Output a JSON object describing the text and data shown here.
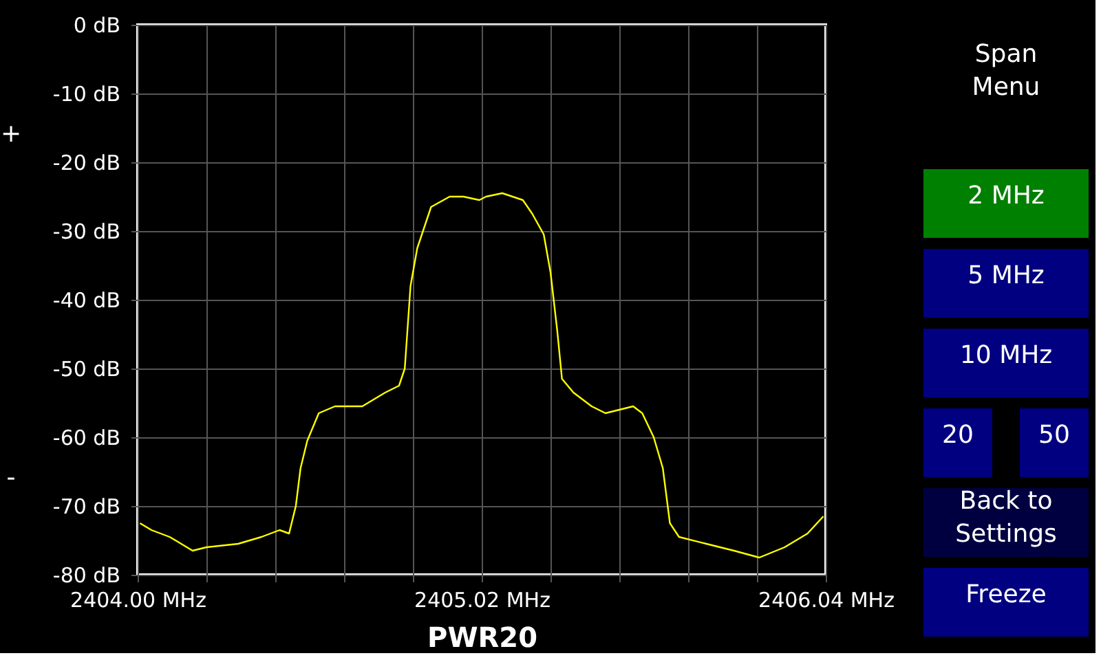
{
  "chart_data": {
    "type": "line",
    "xlabel": "PWR20",
    "x": [
      2404.007,
      2404.041,
      2404.095,
      2404.163,
      2404.204,
      2404.298,
      2404.367,
      2404.421,
      2404.449,
      2404.469,
      2404.483,
      2404.503,
      2404.537,
      2404.585,
      2404.666,
      2404.734,
      2404.775,
      2404.792,
      2404.809,
      2404.829,
      2404.87,
      2404.925,
      2404.966,
      2405.013,
      2405.033,
      2405.081,
      2405.142,
      2405.17,
      2405.204,
      2405.224,
      2405.244,
      2405.258,
      2405.292,
      2405.346,
      2405.387,
      2405.469,
      2405.496,
      2405.53,
      2405.557,
      2405.578,
      2405.605,
      2405.686,
      2405.768,
      2405.843,
      2405.918,
      2405.986,
      2406.033
    ],
    "series": [
      {
        "color": "#ffff00",
        "values": [
          -72.5,
          -73.5,
          -74.5,
          -76.5,
          -76,
          -75.5,
          -74.5,
          -73.5,
          -74,
          -70,
          -64.5,
          -60.5,
          -56.5,
          -55.5,
          -55.5,
          -53.5,
          -52.5,
          -50,
          -38,
          -32.5,
          -26.5,
          -25,
          -25,
          -25.5,
          -25,
          -24.5,
          -25.5,
          -27.5,
          -30.5,
          -36,
          -44.5,
          -51.5,
          -53.5,
          -55.5,
          -56.5,
          -55.5,
          -56.5,
          -60,
          -64.5,
          -72.5,
          -74.5,
          -75.5,
          -76.5,
          -77.5,
          -76,
          -74,
          -71.5
        ]
      }
    ],
    "xlim": [
      2404.0,
      2406.04
    ],
    "xticks": [
      {
        "value": 2404.0,
        "label": "2404.00 MHz"
      },
      {
        "value": 2404.204,
        "label": null
      },
      {
        "value": 2404.408,
        "label": null
      },
      {
        "value": 2404.612,
        "label": null
      },
      {
        "value": 2404.816,
        "label": null
      },
      {
        "value": 2405.02,
        "label": "2405.02 MHz"
      },
      {
        "value": 2405.224,
        "label": null
      },
      {
        "value": 2405.428,
        "label": null
      },
      {
        "value": 2405.632,
        "label": null
      },
      {
        "value": 2405.836,
        "label": null
      },
      {
        "value": 2406.04,
        "label": "2406.04 MHz"
      }
    ],
    "ylim": [
      -80,
      0
    ],
    "yticks": [
      {
        "value": -80,
        "label": "-80 dB"
      },
      {
        "value": -70,
        "label": "-70 dB"
      },
      {
        "value": -60,
        "label": "-60 dB"
      },
      {
        "value": -50,
        "label": "-50 dB"
      },
      {
        "value": -40,
        "label": "-40 dB"
      },
      {
        "value": -30,
        "label": "-30 dB"
      },
      {
        "value": -20,
        "label": "-20 dB"
      },
      {
        "value": -10,
        "label": "-10 dB"
      },
      {
        "value": 0,
        "label": "0 dB"
      }
    ],
    "grid": true,
    "line_style": "solid",
    "marker": "none",
    "annotations": [
      "+",
      "-",
      "Span Menu",
      "2 MHz",
      "5 MHz",
      "10 MHz",
      "20",
      "50",
      "Back to Settings",
      "Freeze"
    ]
  }
}
